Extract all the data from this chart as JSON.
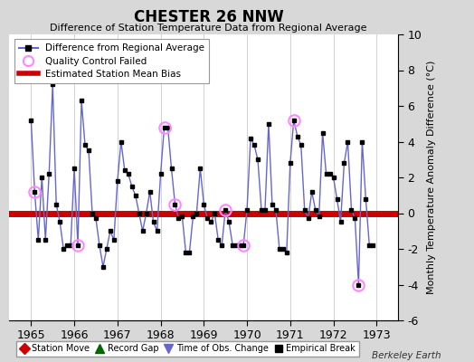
{
  "title": "CHESTER 26 NNW",
  "subtitle": "Difference of Station Temperature Data from Regional Average",
  "ylabel_right": "Monthly Temperature Anomaly Difference (°C)",
  "bias": 0.0,
  "xlim": [
    1964.5,
    1973.5
  ],
  "ylim": [
    -6,
    10
  ],
  "yticks_right": [
    -6,
    -4,
    -2,
    0,
    2,
    4,
    6,
    8,
    10
  ],
  "background_color": "#d8d8d8",
  "plot_bg_color": "#ffffff",
  "line_color": "#6666cc",
  "marker_color": "#000000",
  "bias_color": "#cc0000",
  "qc_color": "#ff88ff",
  "watermark": "Berkeley Earth",
  "data_x": [
    1965.0,
    1965.083,
    1965.167,
    1965.25,
    1965.333,
    1965.417,
    1965.5,
    1965.583,
    1965.667,
    1965.75,
    1965.833,
    1965.917,
    1966.0,
    1966.083,
    1966.167,
    1966.25,
    1966.333,
    1966.417,
    1966.5,
    1966.583,
    1966.667,
    1966.75,
    1966.833,
    1966.917,
    1967.0,
    1967.083,
    1967.167,
    1967.25,
    1967.333,
    1967.417,
    1967.5,
    1967.583,
    1967.667,
    1967.75,
    1967.833,
    1967.917,
    1968.0,
    1968.083,
    1968.167,
    1968.25,
    1968.333,
    1968.417,
    1968.5,
    1968.583,
    1968.667,
    1968.75,
    1968.833,
    1968.917,
    1969.0,
    1969.083,
    1969.167,
    1969.25,
    1969.333,
    1969.417,
    1969.5,
    1969.583,
    1969.667,
    1969.75,
    1969.833,
    1969.917,
    1970.0,
    1970.083,
    1970.167,
    1970.25,
    1970.333,
    1970.417,
    1970.5,
    1970.583,
    1970.667,
    1970.75,
    1970.833,
    1970.917,
    1971.0,
    1971.083,
    1971.167,
    1971.25,
    1971.333,
    1971.417,
    1971.5,
    1971.583,
    1971.667,
    1971.75,
    1971.833,
    1971.917,
    1972.0,
    1972.083,
    1972.167,
    1972.25,
    1972.333,
    1972.417,
    1972.5,
    1972.583,
    1972.667,
    1972.75,
    1972.833,
    1972.917
  ],
  "data_y": [
    5.2,
    1.2,
    -1.5,
    2.0,
    -1.5,
    2.2,
    7.2,
    0.5,
    -0.5,
    -2.0,
    -1.8,
    -1.8,
    2.5,
    -1.8,
    6.3,
    3.8,
    3.5,
    0.0,
    -0.3,
    -1.8,
    -3.0,
    -2.0,
    -1.0,
    -1.5,
    1.8,
    4.0,
    2.4,
    2.2,
    1.5,
    1.0,
    0.0,
    -1.0,
    0.0,
    1.2,
    -0.5,
    -1.0,
    2.2,
    4.8,
    4.8,
    2.5,
    0.5,
    -0.3,
    -0.2,
    -2.2,
    -2.2,
    -0.2,
    0.0,
    2.5,
    0.5,
    -0.3,
    -0.5,
    0.0,
    -1.5,
    -1.8,
    0.2,
    -0.5,
    -1.8,
    -1.8,
    -1.8,
    -1.8,
    0.2,
    4.2,
    3.8,
    3.0,
    0.2,
    0.2,
    5.0,
    0.5,
    0.2,
    -2.0,
    -2.0,
    -2.2,
    2.8,
    5.2,
    4.3,
    3.8,
    0.2,
    -0.3,
    1.2,
    0.2,
    -0.2,
    4.5,
    2.2,
    2.2,
    2.0,
    0.8,
    -0.5,
    2.8,
    4.0,
    0.2,
    -0.3,
    -4.0,
    4.0,
    0.8,
    -1.8,
    -1.8
  ],
  "qc_failed_x": [
    1965.083,
    1966.083,
    1968.083,
    1968.333,
    1969.5,
    1969.917,
    1971.083,
    1972.583
  ],
  "qc_failed_y": [
    1.2,
    -1.8,
    4.8,
    0.5,
    0.2,
    -1.8,
    5.2,
    -4.0
  ],
  "xticks": [
    1965,
    1966,
    1967,
    1968,
    1969,
    1970,
    1971,
    1972,
    1973
  ]
}
